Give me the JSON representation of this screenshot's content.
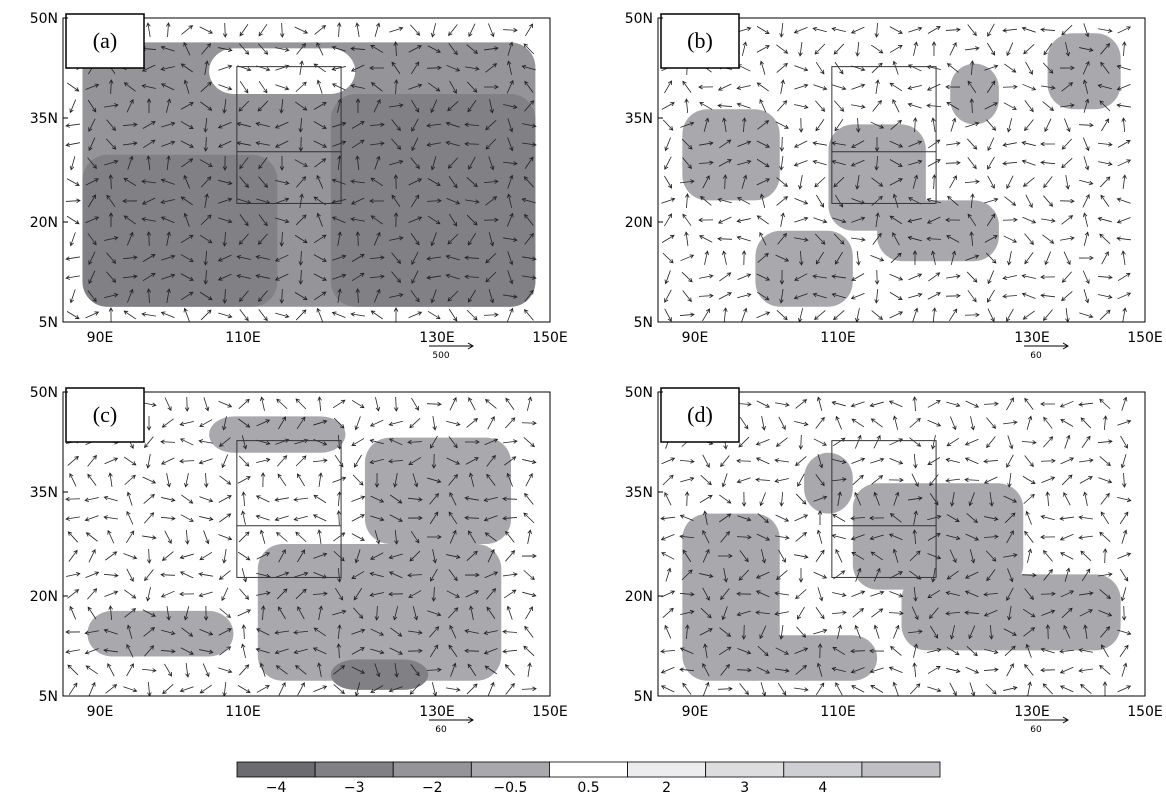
{
  "panels": [
    {
      "label": "(a)",
      "ref_vector": "500"
    },
    {
      "label": "(b)",
      "ref_vector": "60"
    },
    {
      "label": "(c)",
      "ref_vector": "60"
    },
    {
      "label": "(d)",
      "ref_vector": "60"
    }
  ],
  "lat_labels": [
    "50N",
    "35N",
    "20N",
    "5N"
  ],
  "lon_labels": [
    "90E",
    "110E",
    "130E",
    "150E"
  ],
  "colorbar": {
    "labels": [
      "−4",
      "−3",
      "−2",
      "−0.5",
      "0.5",
      "2",
      "3",
      "4"
    ],
    "colors": [
      "#6b6b70",
      "#808085",
      "#949499",
      "#a9a9ad",
      "#ffffff",
      "#ededef",
      "#dddde0",
      "#cecfd2",
      "#c0c0c4"
    ]
  }
}
